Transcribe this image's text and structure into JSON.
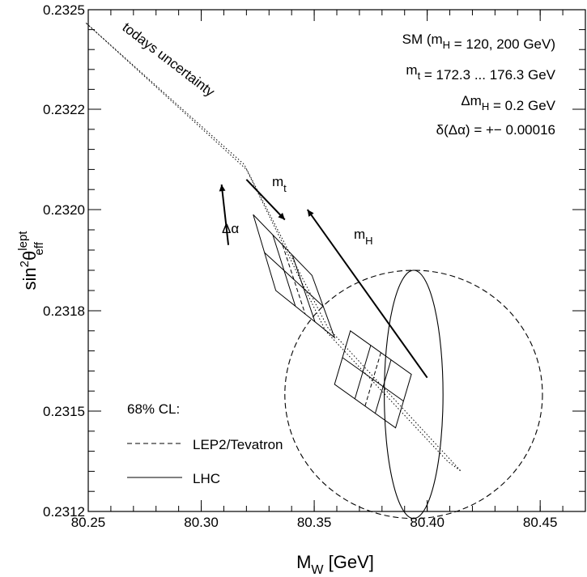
{
  "chart_data": {
    "type": "line",
    "xlabel": {
      "main": "M",
      "sub": "W",
      "rest": " [GeV]"
    },
    "ylabel": {
      "main": "sin",
      "sup1": "2",
      "theta": "θ",
      "sup": "lept",
      "sub": "eff"
    },
    "xlim": [
      80.25,
      80.47
    ],
    "ylim": [
      0.2312,
      0.2325
    ],
    "xticks": [
      80.25,
      80.3,
      80.35,
      80.4,
      80.45
    ],
    "xtick_labels": [
      "80.25",
      "80.30",
      "80.35",
      "80.40",
      "80.45"
    ],
    "yticks": [
      0.2312,
      0.2315,
      0.2318,
      0.232,
      0.2322,
      0.2325
    ],
    "ytick_labels": [
      "0.2312",
      "0.2315",
      "0.2318",
      "0.2320",
      "0.2322",
      "0.2325"
    ],
    "info_lines": [
      [
        "SM (m",
        {
          "sub": "H"
        },
        " = 120, 200 GeV)"
      ],
      [
        "m",
        {
          "sub": "t"
        },
        " = 172.3 ... 176.3 GeV"
      ],
      [
        "Δm",
        {
          "sub": "H"
        },
        " = 0.2 GeV"
      ],
      [
        "δ(Δα) = +− 0.00016"
      ]
    ],
    "band_label": "todays uncertainty",
    "arrow_labels": {
      "mt": {
        "main": "m",
        "sub": "t"
      },
      "mH": {
        "main": "m",
        "sub": "H"
      },
      "dalpha": {
        "main": "Δα"
      }
    },
    "legend": {
      "title": "68% CL:",
      "entries": [
        {
          "name": "LEP2/Tevatron",
          "style": "dashed"
        },
        {
          "name": "LHC",
          "style": "solid"
        }
      ]
    },
    "band": [
      [
        80.249,
        0.23246
      ],
      [
        80.319,
        0.23209
      ],
      [
        80.356,
        0.23175
      ],
      [
        80.415,
        0.23132
      ],
      [
        80.409,
        0.23135
      ],
      [
        80.355,
        0.23174
      ],
      [
        80.32,
        0.23208
      ],
      [
        80.249,
        0.23246
      ]
    ],
    "lep2_ellipse": {
      "cx": 80.394,
      "cy": 0.23155,
      "rx": 0.057,
      "ry": 0.00033
    },
    "lhc_ellipse": {
      "cx": 80.394,
      "cy": 0.23155,
      "rx": 0.013,
      "ry": 0.00033
    },
    "parallelogram_upper": {
      "corners": [
        [
          80.323,
          0.23199
        ],
        [
          80.349,
          0.23187
        ],
        [
          80.359,
          0.23172
        ],
        [
          80.333,
          0.23184
        ]
      ]
    },
    "parallelogram_lower": {
      "corners": [
        [
          80.366,
          0.23174
        ],
        [
          80.393,
          0.23161
        ],
        [
          80.386,
          0.23145
        ],
        [
          80.359,
          0.23158
        ]
      ]
    },
    "arrows": [
      {
        "from": [
          80.4,
          0.2316
        ],
        "to": [
          80.347,
          0.232
        ]
      },
      {
        "from": [
          80.32,
          0.23206
        ],
        "to": [
          80.337,
          0.23198
        ]
      },
      {
        "from": [
          80.312,
          0.23193
        ],
        "to": [
          80.309,
          0.23205
        ]
      }
    ]
  }
}
